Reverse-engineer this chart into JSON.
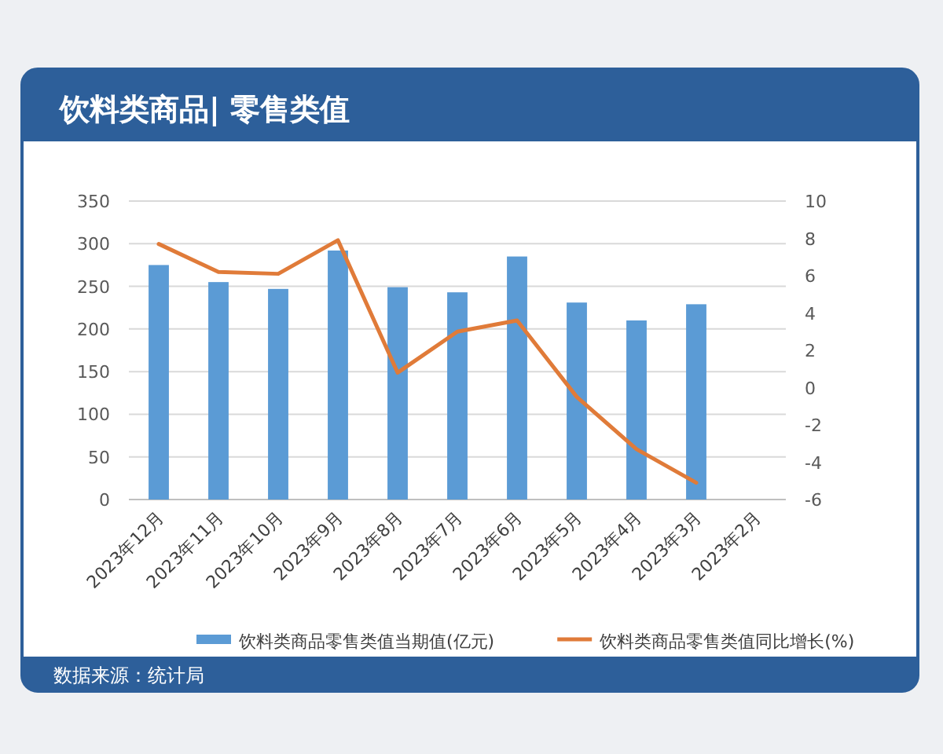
{
  "chart_data": {
    "type": "bar",
    "title": "饮料类商品| 零售类值",
    "categories": [
      "2023年12月",
      "2023年11月",
      "2023年10月",
      "2023年9月",
      "2023年8月",
      "2023年7月",
      "2023年6月",
      "2023年5月",
      "2023年4月",
      "2023年3月",
      "2023年2月"
    ],
    "series": [
      {
        "name": "饮料类商品零售类值当期值(亿元)",
        "color": "#5b9bd5",
        "values": [
          275,
          255,
          247,
          292,
          249,
          243,
          285,
          231,
          210,
          229,
          null
        ]
      },
      {
        "name": "饮料类商品零售类值同比增长(%)",
        "type": "line",
        "axis": "y2",
        "color": "#e07b39",
        "values": [
          7.7,
          6.2,
          6.1,
          7.9,
          0.8,
          3.0,
          3.6,
          -0.5,
          -3.3,
          -5.1,
          null
        ]
      }
    ],
    "ylim": [
      0,
      350
    ],
    "yticks": [
      0,
      50,
      100,
      150,
      200,
      250,
      300,
      350
    ],
    "y2lim": [
      -6,
      10
    ],
    "y2ticks": [
      -6,
      -4,
      -2,
      0,
      2,
      4,
      6,
      8,
      10
    ],
    "grid": "y",
    "legend": "bottom",
    "annotations": [
      "数据来源：统计局"
    ]
  }
}
